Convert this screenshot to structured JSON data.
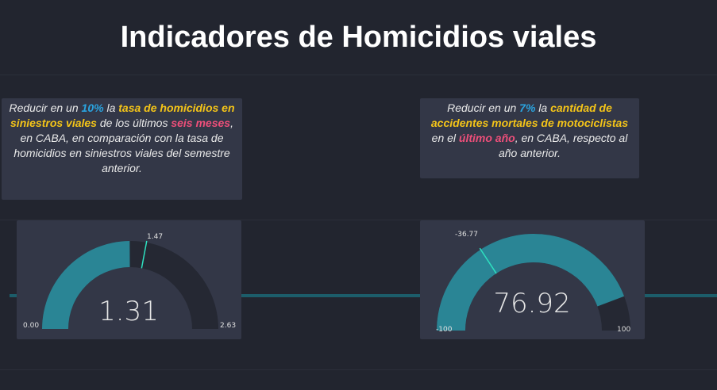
{
  "page": {
    "title": "Indicadores de Homicidios viales"
  },
  "colors": {
    "background": "#22252f",
    "card": "#333747",
    "gauge_fill": "#2a8595",
    "gauge_track": "#252833",
    "marker": "#2ee0c0",
    "highlight_blue": "#2aa4e0",
    "highlight_yellow": "#f5c518",
    "highlight_pink": "#ee4f7a"
  },
  "indicator1": {
    "description": {
      "t1": "Reducir en un ",
      "pct": "10%",
      "t2": " la ",
      "metric": "tasa de homicidios en siniestros viales",
      "t3": " de los últimos ",
      "period": "seis meses",
      "t4": ", en CABA, en comparación con la tasa de homicidios en siniestros viales del semestre anterior."
    },
    "gauge": {
      "value": 1.31,
      "value_label": "1.31",
      "min": 0,
      "min_label": "0.00",
      "max": 2.63,
      "max_label": "2.63",
      "target": 1.47,
      "target_label": "1.47"
    }
  },
  "indicator2": {
    "description": {
      "t1": "Reducir en un ",
      "pct": "7%",
      "t2": " la ",
      "metric": "cantidad de accidentes mortales de motociclistas",
      "t3": " en el ",
      "period": "último año",
      "t4": ", en CABA, respecto al año anterior."
    },
    "gauge": {
      "value": 76.92,
      "value_label": "76.92",
      "min": -100,
      "min_label": "-100",
      "max": 100,
      "max_label": "100",
      "target": -36.77,
      "target_label": "-36.77"
    }
  }
}
